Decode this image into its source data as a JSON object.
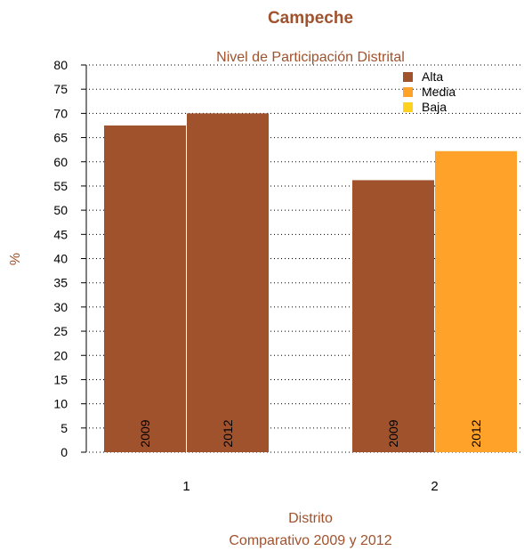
{
  "chart_data": {
    "type": "bar",
    "title": "Campeche",
    "subtitle": "Nivel de Participación Distrital",
    "xlabel": "Distrito",
    "xsublabel": "Comparativo 2009 y 2012",
    "ylabel": "%",
    "ylim": [
      0,
      80
    ],
    "yticks": [
      0,
      5,
      10,
      15,
      20,
      25,
      30,
      35,
      40,
      45,
      50,
      55,
      60,
      65,
      70,
      75,
      80
    ],
    "grid": true,
    "legend_position": "top-right",
    "legend": [
      {
        "label": "Alta",
        "color": "#A0522D"
      },
      {
        "label": "Media",
        "color": "#FFA229"
      },
      {
        "label": "Baja",
        "color": "#FFD21F"
      }
    ],
    "categories": [
      "1",
      "2"
    ],
    "groups": [
      {
        "category": "1",
        "bars": [
          {
            "year": "2009",
            "value": 67.5,
            "level": "Alta",
            "color": "#A0522D"
          },
          {
            "year": "2012",
            "value": 70.0,
            "level": "Alta",
            "color": "#A0522D"
          }
        ]
      },
      {
        "category": "2",
        "bars": [
          {
            "year": "2009",
            "value": 56.2,
            "level": "Alta",
            "color": "#A0522D"
          },
          {
            "year": "2012",
            "value": 62.2,
            "level": "Media",
            "color": "#FFA229"
          }
        ]
      }
    ],
    "title_color": "#A0522D"
  }
}
